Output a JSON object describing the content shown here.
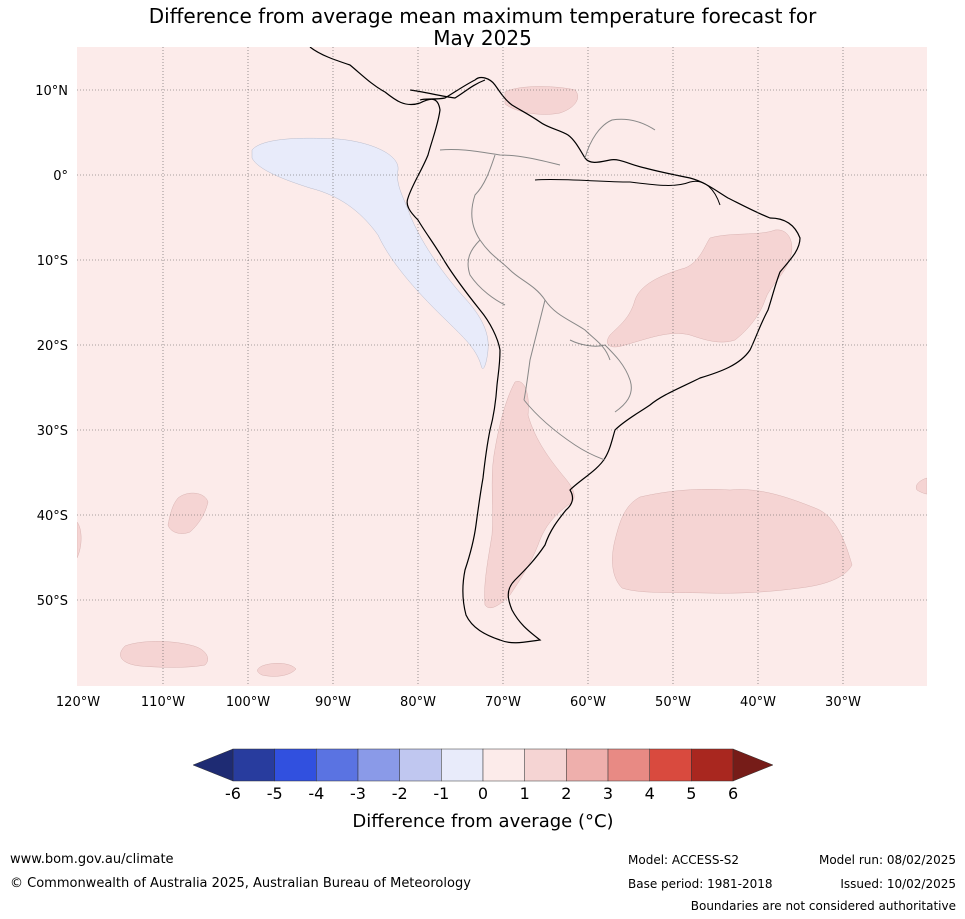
{
  "title_line1": "Difference from average mean maximum temperature forecast for",
  "title_line2": "May 2025",
  "lat_labels": [
    "10°N",
    "0°",
    "10°S",
    "20°S",
    "30°S",
    "40°S",
    "50°S"
  ],
  "lon_labels": [
    "120°W",
    "110°W",
    "100°W",
    "90°W",
    "80°W",
    "70°W",
    "60°W",
    "50°W",
    "40°W",
    "30°W"
  ],
  "colorbar": {
    "ticks": [
      "-6",
      "-5",
      "-4",
      "-3",
      "-2",
      "-1",
      "0",
      "1",
      "2",
      "3",
      "4",
      "5",
      "6"
    ],
    "colors": [
      "#283c9e",
      "#3150df",
      "#5a73e2",
      "#8a9ae8",
      "#c0c7f0",
      "#e8ebfa",
      "#fcebea",
      "#f5d4d3",
      "#eeafac",
      "#e88a84",
      "#d94a3e",
      "#a9271f"
    ],
    "under_color": "#1e2b73",
    "over_color": "#761c18",
    "label": "Difference from average (°C)"
  },
  "footer": {
    "url": "www.bom.gov.au/climate",
    "copyright": "© Commonwealth of Australia 2025, Australian Bureau of Meteorology",
    "model": "Model: ACCESS-S2",
    "base_period": "Base period: 1981-2018",
    "model_run": "Model run: 08/02/2025",
    "issued": "Issued: 10/02/2025",
    "disclaimer": "Boundaries are not considered authoritative"
  }
}
